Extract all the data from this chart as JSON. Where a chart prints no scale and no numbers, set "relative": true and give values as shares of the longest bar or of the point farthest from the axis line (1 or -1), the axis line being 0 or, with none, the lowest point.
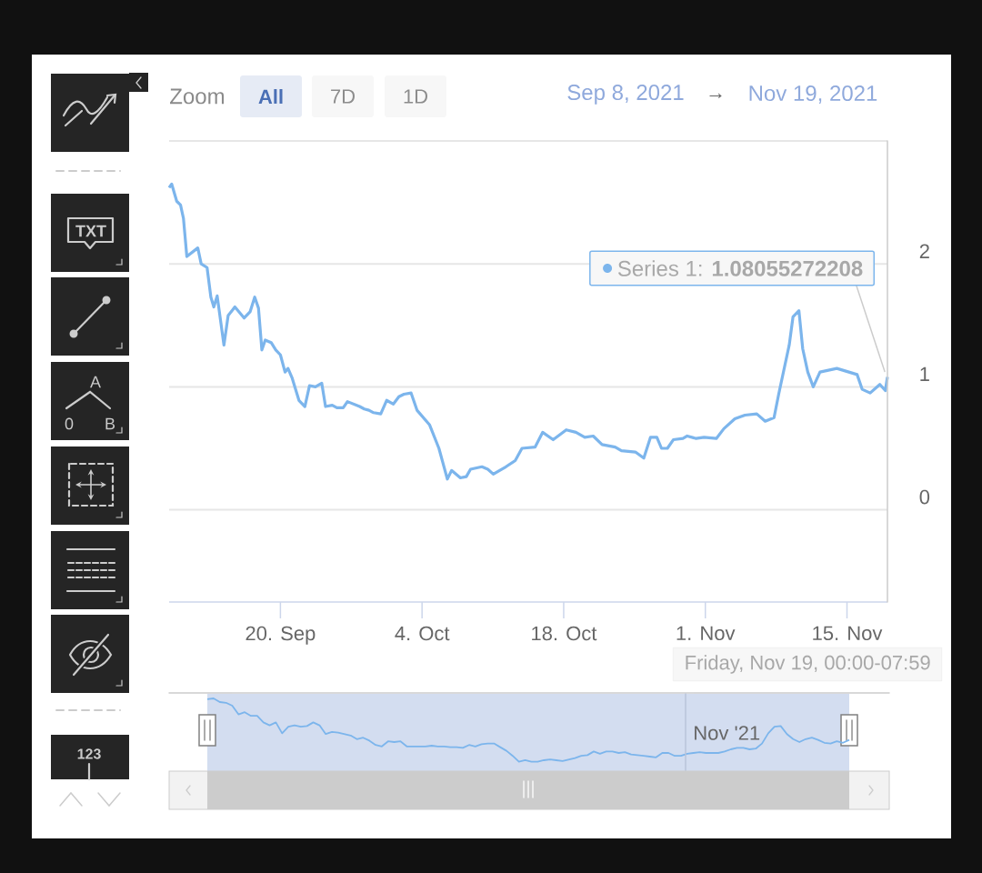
{
  "chart_data": [
    {
      "type": "line",
      "xlim": [
        "2021-09-09",
        "2021-11-19"
      ],
      "xticks": [
        {
          "value": "2021-09-20",
          "label": "20. Sep"
        },
        {
          "value": "2021-10-04",
          "label": "4. Oct"
        },
        {
          "value": "2021-10-18",
          "label": "18. Oct"
        },
        {
          "value": "2021-11-01",
          "label": "1. Nov"
        },
        {
          "value": "2021-11-15",
          "label": "15. Nov"
        }
      ],
      "ylim": [
        -0.75,
        3
      ],
      "yticks": [
        0,
        1,
        2,
        {
          "value": 3,
          "label": null
        }
      ],
      "grid": "y",
      "series": [
        {
          "color": "#7cb5ec",
          "x": [
            "2021-09-09T00:00",
            "2021-09-09T06:00",
            "2021-09-09T18:00",
            "2021-09-10T03:00",
            "2021-09-10T10:00",
            "2021-09-10T18:00",
            "2021-09-11T20:00",
            "2021-09-12T04:00",
            "2021-09-12T18:00",
            "2021-09-13T03:00",
            "2021-09-13T10:00",
            "2021-09-13T18:00",
            "2021-09-14T10:00",
            "2021-09-14T20:00",
            "2021-09-15T12:00",
            "2021-09-16T10:00",
            "2021-09-17T00:00",
            "2021-09-17T11:00",
            "2021-09-17T20:00",
            "2021-09-18T04:00",
            "2021-09-18T12:00",
            "2021-09-19T02:00",
            "2021-09-19T13:00",
            "2021-09-20T00:00",
            "2021-09-20T11:00",
            "2021-09-20T18:00",
            "2021-09-21T04:00",
            "2021-09-21T20:00",
            "2021-09-22T10:00",
            "2021-09-22T21:00",
            "2021-09-23T11:00",
            "2021-09-24T02:00",
            "2021-09-24T11:00",
            "2021-09-25T03:00",
            "2021-09-25T14:00",
            "2021-09-26T05:00",
            "2021-09-26T15:00",
            "2021-09-27T20:00",
            "2021-09-28T07:00",
            "2021-09-28T18:00",
            "2021-09-29T05:00",
            "2021-09-29T22:00",
            "2021-09-30T12:00",
            "2021-10-01T04:00",
            "2021-10-01T17:00",
            "2021-10-02T05:00",
            "2021-10-02T22:00",
            "2021-10-03T12:00",
            "2021-10-04T18:00",
            "2021-10-05T16:00",
            "2021-10-06T12:00",
            "2021-10-06T22:00",
            "2021-10-07T19:00",
            "2021-10-08T09:00",
            "2021-10-08T19:00",
            "2021-10-09T22:00",
            "2021-10-10T12:00",
            "2021-10-11T01:00",
            "2021-10-12T07:00",
            "2021-10-13T05:00",
            "2021-10-13T21:00",
            "2021-10-15T04:00",
            "2021-10-15T22:00",
            "2021-10-16T23:00",
            "2021-10-18T06:00",
            "2021-10-19T05:00",
            "2021-10-20T02:00",
            "2021-10-20T22:00",
            "2021-10-21T19:00",
            "2021-10-23T02:00",
            "2021-10-23T17:00",
            "2021-10-25T02:00",
            "2021-10-25T22:00",
            "2021-10-26T14:00",
            "2021-10-27T05:00",
            "2021-10-27T16:00",
            "2021-10-28T06:00",
            "2021-10-28T20:00",
            "2021-10-29T19:00",
            "2021-10-30T05:00",
            "2021-10-31T02:00",
            "2021-10-31T21:00",
            "2021-11-02T02:00",
            "2021-11-02T20:00",
            "2021-11-03T22:00",
            "2021-11-04T22:00",
            "2021-11-06T02:00",
            "2021-11-06T22:00",
            "2021-11-07T19:00",
            "2021-11-08T06:00",
            "2021-11-09T07:00",
            "2021-11-09T16:00",
            "2021-11-10T06:00",
            "2021-11-10T15:00",
            "2021-11-11T03:00",
            "2021-11-11T16:00",
            "2021-11-12T08:00",
            "2021-11-14T00:00",
            "2021-11-16T00:00",
            "2021-11-16T12:00",
            "2021-11-17T07:00",
            "2021-11-18T06:00",
            "2021-11-18T19:00",
            "2021-11-19T00:00"
          ],
          "values": [
            2.62,
            2.65,
            2.51,
            2.48,
            2.37,
            2.06,
            2.13,
            2.0,
            1.97,
            1.73,
            1.65,
            1.74,
            1.34,
            1.58,
            1.65,
            1.56,
            1.61,
            1.73,
            1.64,
            1.3,
            1.38,
            1.36,
            1.3,
            1.26,
            1.12,
            1.15,
            1.07,
            0.89,
            0.84,
            1.01,
            1.0,
            1.03,
            0.84,
            0.85,
            0.83,
            0.83,
            0.88,
            0.84,
            0.82,
            0.81,
            0.79,
            0.78,
            0.89,
            0.86,
            0.92,
            0.94,
            0.95,
            0.81,
            0.69,
            0.5,
            0.25,
            0.32,
            0.26,
            0.27,
            0.33,
            0.35,
            0.33,
            0.29,
            0.35,
            0.4,
            0.5,
            0.51,
            0.63,
            0.57,
            0.65,
            0.63,
            0.59,
            0.6,
            0.53,
            0.51,
            0.48,
            0.47,
            0.42,
            0.59,
            0.59,
            0.5,
            0.5,
            0.57,
            0.58,
            0.6,
            0.58,
            0.59,
            0.58,
            0.66,
            0.74,
            0.77,
            0.78,
            0.72,
            0.75,
            0.94,
            1.34,
            1.57,
            1.62,
            1.31,
            1.12,
            1.0,
            1.12,
            1.15,
            1.1,
            0.98,
            0.95,
            1.02,
            0.97,
            1.08
          ]
        }
      ],
      "marker": "none",
      "annotations": [
        "Zoom",
        "All",
        "7D",
        "1D",
        "Sep 8, 2021",
        "→",
        "Nov 19, 2021",
        {
          "text": "Series 1: **1.08055272208**",
          "x": "2021-11-19T00:00",
          "y": 1.08
        },
        "Friday, Nov 19, 00:00-07:59",
        "TXT",
        "A",
        "0",
        "B",
        "123"
      ]
    },
    {
      "type": "line",
      "relative": true,
      "annotations": [
        "Nov '21"
      ],
      "categories": [
        null,
        null,
        null,
        null,
        null,
        null,
        null,
        null,
        null,
        null,
        null,
        null,
        null,
        null,
        null,
        null,
        null,
        null,
        null,
        null,
        null,
        null,
        null,
        null,
        null,
        null,
        null,
        null,
        null,
        null,
        null,
        null,
        null,
        null,
        null,
        null,
        null,
        null,
        null,
        null,
        null,
        null,
        null,
        null,
        null,
        null,
        null,
        null,
        null,
        null,
        null,
        null,
        null,
        null,
        null,
        null,
        null,
        null,
        null,
        null,
        null,
        null,
        null,
        null,
        null,
        null,
        null,
        null,
        null,
        null,
        null,
        null,
        null,
        null,
        null,
        null,
        null,
        null,
        null,
        null,
        null,
        null,
        null,
        null,
        null,
        null,
        null,
        null,
        null,
        null,
        null,
        null,
        null,
        null,
        null,
        null,
        null,
        null,
        null,
        null,
        null,
        null,
        null,
        null
      ],
      "series": [
        {
          "color": "#7cb5ec",
          "values": [
            0.99,
            1,
            0.95,
            0.94,
            0.9,
            0.78,
            0.81,
            0.76,
            0.76,
            0.67,
            0.63,
            0.67,
            0.52,
            0.61,
            0.63,
            0.61,
            0.62,
            0.67,
            0.63,
            0.51,
            0.54,
            0.53,
            0.51,
            0.49,
            0.44,
            0.46,
            0.42,
            0.36,
            0.34,
            0.41,
            0.4,
            0.41,
            0.34,
            0.34,
            0.34,
            0.34,
            0.35,
            0.34,
            0.34,
            0.33,
            0.33,
            0.32,
            0.36,
            0.34,
            0.37,
            0.38,
            0.38,
            0.33,
            0.28,
            0.21,
            0.13,
            0.15,
            0.13,
            0.13,
            0.15,
            0.16,
            0.15,
            0.14,
            0.16,
            0.18,
            0.21,
            0.22,
            0.27,
            0.24,
            0.27,
            0.27,
            0.25,
            0.26,
            0.23,
            0.22,
            0.21,
            0.2,
            0.19,
            0.25,
            0.25,
            0.21,
            0.21,
            0.24,
            0.25,
            0.26,
            0.25,
            0.25,
            0.25,
            0.27,
            0.3,
            0.32,
            0.32,
            0.3,
            0.31,
            0.38,
            0.52,
            0.61,
            0.62,
            0.51,
            0.44,
            0.4,
            0.44,
            0.46,
            0.43,
            0.39,
            0.38,
            0.41,
            0.39,
            0.43
          ]
        }
      ],
      "marker": "none"
    }
  ]
}
